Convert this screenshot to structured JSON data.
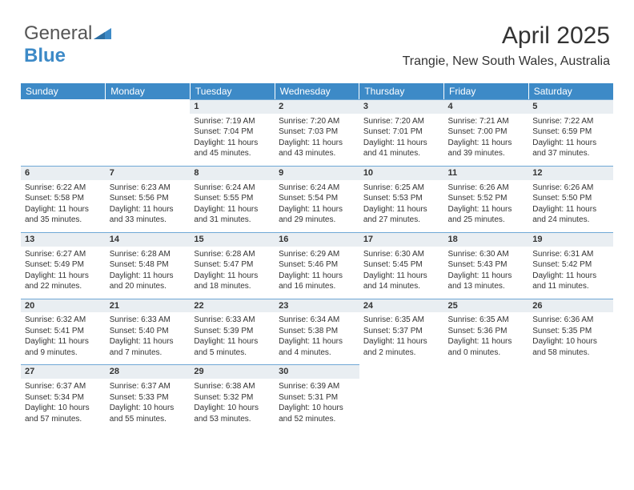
{
  "logo": {
    "text1": "General",
    "text2": "Blue"
  },
  "title": {
    "month_year": "April 2025",
    "location": "Trangie, New South Wales, Australia"
  },
  "colors": {
    "header_bg": "#3d8ac7",
    "header_text": "#ffffff",
    "daynum_bg": "#e9eef2",
    "daynum_border": "#6fa8d6",
    "body_text": "#333333"
  },
  "day_headers": [
    "Sunday",
    "Monday",
    "Tuesday",
    "Wednesday",
    "Thursday",
    "Friday",
    "Saturday"
  ],
  "weeks": [
    [
      null,
      null,
      {
        "n": "1",
        "t": "Sunrise: 7:19 AM\nSunset: 7:04 PM\nDaylight: 11 hours and 45 minutes."
      },
      {
        "n": "2",
        "t": "Sunrise: 7:20 AM\nSunset: 7:03 PM\nDaylight: 11 hours and 43 minutes."
      },
      {
        "n": "3",
        "t": "Sunrise: 7:20 AM\nSunset: 7:01 PM\nDaylight: 11 hours and 41 minutes."
      },
      {
        "n": "4",
        "t": "Sunrise: 7:21 AM\nSunset: 7:00 PM\nDaylight: 11 hours and 39 minutes."
      },
      {
        "n": "5",
        "t": "Sunrise: 7:22 AM\nSunset: 6:59 PM\nDaylight: 11 hours and 37 minutes."
      }
    ],
    [
      {
        "n": "6",
        "t": "Sunrise: 6:22 AM\nSunset: 5:58 PM\nDaylight: 11 hours and 35 minutes."
      },
      {
        "n": "7",
        "t": "Sunrise: 6:23 AM\nSunset: 5:56 PM\nDaylight: 11 hours and 33 minutes."
      },
      {
        "n": "8",
        "t": "Sunrise: 6:24 AM\nSunset: 5:55 PM\nDaylight: 11 hours and 31 minutes."
      },
      {
        "n": "9",
        "t": "Sunrise: 6:24 AM\nSunset: 5:54 PM\nDaylight: 11 hours and 29 minutes."
      },
      {
        "n": "10",
        "t": "Sunrise: 6:25 AM\nSunset: 5:53 PM\nDaylight: 11 hours and 27 minutes."
      },
      {
        "n": "11",
        "t": "Sunrise: 6:26 AM\nSunset: 5:52 PM\nDaylight: 11 hours and 25 minutes."
      },
      {
        "n": "12",
        "t": "Sunrise: 6:26 AM\nSunset: 5:50 PM\nDaylight: 11 hours and 24 minutes."
      }
    ],
    [
      {
        "n": "13",
        "t": "Sunrise: 6:27 AM\nSunset: 5:49 PM\nDaylight: 11 hours and 22 minutes."
      },
      {
        "n": "14",
        "t": "Sunrise: 6:28 AM\nSunset: 5:48 PM\nDaylight: 11 hours and 20 minutes."
      },
      {
        "n": "15",
        "t": "Sunrise: 6:28 AM\nSunset: 5:47 PM\nDaylight: 11 hours and 18 minutes."
      },
      {
        "n": "16",
        "t": "Sunrise: 6:29 AM\nSunset: 5:46 PM\nDaylight: 11 hours and 16 minutes."
      },
      {
        "n": "17",
        "t": "Sunrise: 6:30 AM\nSunset: 5:45 PM\nDaylight: 11 hours and 14 minutes."
      },
      {
        "n": "18",
        "t": "Sunrise: 6:30 AM\nSunset: 5:43 PM\nDaylight: 11 hours and 13 minutes."
      },
      {
        "n": "19",
        "t": "Sunrise: 6:31 AM\nSunset: 5:42 PM\nDaylight: 11 hours and 11 minutes."
      }
    ],
    [
      {
        "n": "20",
        "t": "Sunrise: 6:32 AM\nSunset: 5:41 PM\nDaylight: 11 hours and 9 minutes."
      },
      {
        "n": "21",
        "t": "Sunrise: 6:33 AM\nSunset: 5:40 PM\nDaylight: 11 hours and 7 minutes."
      },
      {
        "n": "22",
        "t": "Sunrise: 6:33 AM\nSunset: 5:39 PM\nDaylight: 11 hours and 5 minutes."
      },
      {
        "n": "23",
        "t": "Sunrise: 6:34 AM\nSunset: 5:38 PM\nDaylight: 11 hours and 4 minutes."
      },
      {
        "n": "24",
        "t": "Sunrise: 6:35 AM\nSunset: 5:37 PM\nDaylight: 11 hours and 2 minutes."
      },
      {
        "n": "25",
        "t": "Sunrise: 6:35 AM\nSunset: 5:36 PM\nDaylight: 11 hours and 0 minutes."
      },
      {
        "n": "26",
        "t": "Sunrise: 6:36 AM\nSunset: 5:35 PM\nDaylight: 10 hours and 58 minutes."
      }
    ],
    [
      {
        "n": "27",
        "t": "Sunrise: 6:37 AM\nSunset: 5:34 PM\nDaylight: 10 hours and 57 minutes."
      },
      {
        "n": "28",
        "t": "Sunrise: 6:37 AM\nSunset: 5:33 PM\nDaylight: 10 hours and 55 minutes."
      },
      {
        "n": "29",
        "t": "Sunrise: 6:38 AM\nSunset: 5:32 PM\nDaylight: 10 hours and 53 minutes."
      },
      {
        "n": "30",
        "t": "Sunrise: 6:39 AM\nSunset: 5:31 PM\nDaylight: 10 hours and 52 minutes."
      },
      null,
      null,
      null
    ]
  ]
}
